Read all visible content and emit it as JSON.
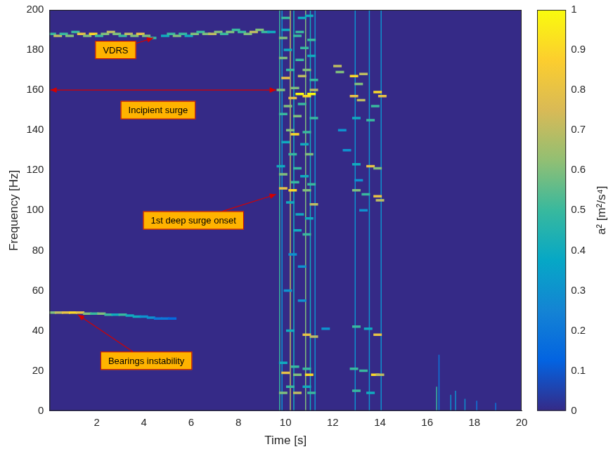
{
  "chart_data": {
    "type": "heatmap",
    "x_label": "Time [s]",
    "y_label": "Frequency [Hz]",
    "xlim": [
      0,
      20
    ],
    "xticks": [
      2,
      4,
      6,
      8,
      10,
      12,
      14,
      16,
      18,
      20
    ],
    "ylim": [
      0,
      200
    ],
    "yticks": [
      0,
      20,
      40,
      60,
      80,
      100,
      120,
      140,
      160,
      180,
      200
    ],
    "grid": false,
    "colorbar": {
      "label": "a² [m²/s⁴]",
      "range": [
        0,
        1
      ],
      "ticks": [
        0,
        0.1,
        0.2,
        0.3,
        0.4,
        0.5,
        0.6,
        0.7,
        0.8,
        0.9,
        1
      ]
    },
    "points": [
      [
        0.1,
        188,
        0.5
      ],
      [
        0.35,
        187,
        0.7
      ],
      [
        0.6,
        188,
        0.5
      ],
      [
        0.85,
        187,
        0.6
      ],
      [
        1.1,
        189,
        0.5
      ],
      [
        1.35,
        188,
        0.8
      ],
      [
        1.6,
        187,
        0.6
      ],
      [
        1.85,
        188,
        0.9
      ],
      [
        2.1,
        187,
        0.5
      ],
      [
        2.35,
        188,
        0.6
      ],
      [
        2.6,
        189,
        0.7
      ],
      [
        2.85,
        188,
        0.6
      ],
      [
        3.1,
        187,
        0.5
      ],
      [
        3.35,
        188,
        0.7
      ],
      [
        3.6,
        187,
        0.6
      ],
      [
        3.85,
        188,
        0.8
      ],
      [
        4.1,
        187,
        0.6
      ],
      [
        4.35,
        186,
        0.5
      ],
      [
        4.9,
        187,
        0.4
      ],
      [
        5.15,
        188,
        0.5
      ],
      [
        5.4,
        187,
        0.6
      ],
      [
        5.65,
        188,
        0.5
      ],
      [
        5.9,
        187,
        0.4
      ],
      [
        6.15,
        188,
        0.6
      ],
      [
        6.4,
        189,
        0.5
      ],
      [
        6.65,
        188,
        0.6
      ],
      [
        6.9,
        188,
        0.7
      ],
      [
        7.15,
        189,
        0.6
      ],
      [
        7.4,
        188,
        0.5
      ],
      [
        7.65,
        189,
        0.6
      ],
      [
        7.9,
        190,
        0.5
      ],
      [
        8.15,
        189,
        0.5
      ],
      [
        8.4,
        188,
        0.6
      ],
      [
        8.65,
        189,
        0.7
      ],
      [
        8.9,
        190,
        0.6
      ],
      [
        9.15,
        189,
        0.5
      ],
      [
        9.4,
        189,
        0.4
      ],
      [
        0.1,
        49,
        0.6
      ],
      [
        0.4,
        49,
        0.7
      ],
      [
        0.7,
        49,
        0.8
      ],
      [
        1.0,
        49,
        0.9
      ],
      [
        1.3,
        49,
        0.8
      ],
      [
        1.6,
        48.5,
        0.6
      ],
      [
        1.9,
        48.5,
        0.5
      ],
      [
        2.2,
        48.5,
        0.6
      ],
      [
        2.5,
        48,
        0.5
      ],
      [
        2.8,
        48,
        0.4
      ],
      [
        3.1,
        48,
        0.5
      ],
      [
        3.4,
        47.5,
        0.4
      ],
      [
        3.7,
        47,
        0.4
      ],
      [
        4.0,
        47,
        0.3
      ],
      [
        4.3,
        46.5,
        0.3
      ],
      [
        4.6,
        46,
        0.2
      ],
      [
        4.9,
        46,
        0.2
      ],
      [
        5.2,
        46,
        0.15
      ],
      [
        10.0,
        196,
        0.5
      ],
      [
        10.7,
        196,
        0.4
      ],
      [
        11.0,
        197,
        0.4
      ],
      [
        10.0,
        190,
        0.4
      ],
      [
        10.6,
        189,
        0.5
      ],
      [
        9.9,
        186,
        0.6
      ],
      [
        10.5,
        187,
        0.5
      ],
      [
        11.1,
        185,
        0.5
      ],
      [
        10.1,
        180,
        0.4
      ],
      [
        10.8,
        181,
        0.5
      ],
      [
        9.9,
        176,
        0.6
      ],
      [
        10.6,
        175,
        0.5
      ],
      [
        11.1,
        177,
        0.4
      ],
      [
        10.2,
        170,
        0.5
      ],
      [
        10.9,
        170,
        0.6
      ],
      [
        10.0,
        166,
        0.8
      ],
      [
        10.7,
        167,
        0.7
      ],
      [
        11.2,
        165,
        0.5
      ],
      [
        9.8,
        160,
        0.6
      ],
      [
        10.4,
        161,
        0.6
      ],
      [
        11.2,
        160,
        0.7
      ],
      [
        10.6,
        158,
        1.0
      ],
      [
        10.9,
        157,
        0.9
      ],
      [
        11.1,
        158,
        1.0
      ],
      [
        10.3,
        156,
        0.8
      ],
      [
        10.1,
        152,
        0.6
      ],
      [
        10.7,
        153,
        0.5
      ],
      [
        9.9,
        148,
        0.5
      ],
      [
        10.5,
        147,
        0.6
      ],
      [
        11.2,
        146,
        0.5
      ],
      [
        10.2,
        140,
        0.6
      ],
      [
        10.4,
        138,
        0.9
      ],
      [
        10.9,
        139,
        0.5
      ],
      [
        10.0,
        134,
        0.4
      ],
      [
        10.8,
        133,
        0.4
      ],
      [
        10.3,
        128,
        0.5
      ],
      [
        11.0,
        128,
        0.6
      ],
      [
        9.8,
        122,
        0.4
      ],
      [
        10.5,
        121,
        0.5
      ],
      [
        9.9,
        118,
        0.6
      ],
      [
        10.8,
        117,
        0.4
      ],
      [
        10.4,
        114,
        0.5
      ],
      [
        11.1,
        113,
        0.5
      ],
      [
        9.9,
        111,
        0.8
      ],
      [
        10.3,
        110,
        0.9
      ],
      [
        10.9,
        110,
        0.6
      ],
      [
        11.2,
        103,
        0.7
      ],
      [
        10.2,
        104,
        0.4
      ],
      [
        10.6,
        98,
        0.4
      ],
      [
        11.0,
        96,
        0.4
      ],
      [
        10.5,
        90,
        0.4
      ],
      [
        10.9,
        88,
        0.5
      ],
      [
        10.3,
        78,
        0.3
      ],
      [
        10.7,
        72,
        0.3
      ],
      [
        10.1,
        60,
        0.3
      ],
      [
        10.7,
        55,
        0.3
      ],
      [
        10.2,
        40,
        0.4
      ],
      [
        10.9,
        38,
        0.8
      ],
      [
        11.2,
        37,
        0.7
      ],
      [
        9.9,
        24,
        0.4
      ],
      [
        10.4,
        22,
        0.5
      ],
      [
        10.9,
        21,
        0.5
      ],
      [
        10.0,
        19,
        0.8
      ],
      [
        10.5,
        18,
        0.6
      ],
      [
        11.0,
        18,
        0.9
      ],
      [
        10.2,
        12,
        0.5
      ],
      [
        10.9,
        12,
        0.4
      ],
      [
        9.9,
        9,
        0.6
      ],
      [
        10.5,
        9,
        0.7
      ],
      [
        11.1,
        9,
        0.5
      ],
      [
        11.7,
        41,
        0.3
      ],
      [
        12.2,
        172,
        0.7
      ],
      [
        12.3,
        169,
        0.6
      ],
      [
        12.9,
        167,
        0.9
      ],
      [
        13.3,
        168,
        0.7
      ],
      [
        13.1,
        163,
        0.6
      ],
      [
        12.9,
        157,
        0.8
      ],
      [
        13.2,
        155,
        0.7
      ],
      [
        13.9,
        159,
        0.9
      ],
      [
        14.1,
        157,
        0.8
      ],
      [
        13.8,
        152,
        0.5
      ],
      [
        13.0,
        146,
        0.4
      ],
      [
        13.6,
        145,
        0.5
      ],
      [
        12.4,
        140,
        0.3
      ],
      [
        12.6,
        130,
        0.3
      ],
      [
        13.0,
        123,
        0.4
      ],
      [
        13.6,
        122,
        0.8
      ],
      [
        13.9,
        121,
        0.6
      ],
      [
        13.1,
        115,
        0.3
      ],
      [
        13.0,
        110,
        0.6
      ],
      [
        13.4,
        108,
        0.5
      ],
      [
        13.9,
        107,
        0.8
      ],
      [
        14.0,
        105,
        0.7
      ],
      [
        13.3,
        100,
        0.3
      ],
      [
        13.0,
        42,
        0.5
      ],
      [
        13.5,
        41,
        0.4
      ],
      [
        13.9,
        38,
        0.8
      ],
      [
        12.9,
        21,
        0.5
      ],
      [
        13.3,
        20,
        0.5
      ],
      [
        13.8,
        18,
        0.9
      ],
      [
        14.0,
        18,
        0.7
      ],
      [
        13.0,
        10,
        0.5
      ],
      [
        13.6,
        9,
        0.4
      ]
    ],
    "vertical_lines": [
      {
        "x": 9.75,
        "y": [
          0,
          200
        ],
        "value": 0.5
      },
      {
        "x": 9.85,
        "y": [
          0,
          200
        ],
        "value": 0.3
      },
      {
        "x": 10.2,
        "y": [
          0,
          200
        ],
        "value": 0.7
      },
      {
        "x": 10.35,
        "y": [
          0,
          200
        ],
        "value": 0.4
      },
      {
        "x": 10.85,
        "y": [
          0,
          200
        ],
        "value": 0.6
      },
      {
        "x": 11.05,
        "y": [
          0,
          200
        ],
        "value": 0.4
      },
      {
        "x": 11.25,
        "y": [
          0,
          200
        ],
        "value": 0.3
      },
      {
        "x": 12.95,
        "y": [
          0,
          200
        ],
        "value": 0.3
      },
      {
        "x": 13.55,
        "y": [
          0,
          200
        ],
        "value": 0.3
      },
      {
        "x": 14.05,
        "y": [
          0,
          200
        ],
        "value": 0.3
      },
      {
        "x": 16.4,
        "y": [
          0,
          12
        ],
        "value": 0.5
      },
      {
        "x": 16.5,
        "y": [
          0,
          28
        ],
        "value": 0.2
      },
      {
        "x": 17.0,
        "y": [
          0,
          8
        ],
        "value": 0.3
      },
      {
        "x": 17.2,
        "y": [
          0,
          10
        ],
        "value": 0.3
      },
      {
        "x": 17.6,
        "y": [
          0,
          6
        ],
        "value": 0.3
      },
      {
        "x": 18.1,
        "y": [
          0,
          5
        ],
        "value": 0.2
      },
      {
        "x": 18.9,
        "y": [
          0,
          4
        ],
        "value": 0.2
      }
    ],
    "annotations": [
      {
        "text": "VDRS",
        "x": 4.4,
        "y": 186
      },
      {
        "text": "Incipient surge",
        "x": 0,
        "x2": 9.6,
        "y": 160
      },
      {
        "text": "1st deep surge onset",
        "x": 9.6,
        "y": 108
      },
      {
        "text": "Bearings instability",
        "x": 1.2,
        "y": 48
      }
    ]
  }
}
